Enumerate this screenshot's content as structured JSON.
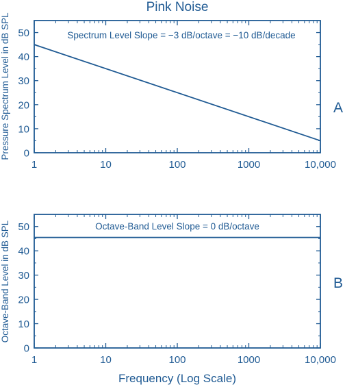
{
  "colors": {
    "ink": "#1f5a93"
  },
  "chart_data": [
    {
      "panel": "A",
      "type": "line",
      "title": "Pink Noise",
      "ylabel": "Pressure Spectrum Level in dB SPL",
      "xlabel": "",
      "x_scale": "log",
      "xlim": [
        1,
        10000
      ],
      "ylim": [
        0,
        55
      ],
      "xticks": [
        "1",
        "10",
        "100",
        "1000",
        "10,000"
      ],
      "yticks": [
        "0",
        "10",
        "20",
        "30",
        "40",
        "50"
      ],
      "annotation": "Spectrum Level Slope = −3 dB/octave = −10 dB/decade",
      "series": [
        {
          "x": [
            1,
            10000
          ],
          "y": [
            45,
            5
          ]
        }
      ]
    },
    {
      "panel": "B",
      "type": "line",
      "title": "",
      "ylabel": "Octave-Band Level in dB SPL",
      "xlabel": "Frequency (Log Scale)",
      "x_scale": "log",
      "xlim": [
        1,
        10000
      ],
      "ylim": [
        0,
        55
      ],
      "xticks": [
        "1",
        "10",
        "100",
        "1000",
        "10,000"
      ],
      "yticks": [
        "0",
        "10",
        "20",
        "30",
        "40",
        "50"
      ],
      "annotation": "Octave-Band Level Slope = 0 dB/octave",
      "series": [
        {
          "x": [
            1,
            10000
          ],
          "y": [
            45.5,
            45.5
          ]
        }
      ]
    }
  ]
}
